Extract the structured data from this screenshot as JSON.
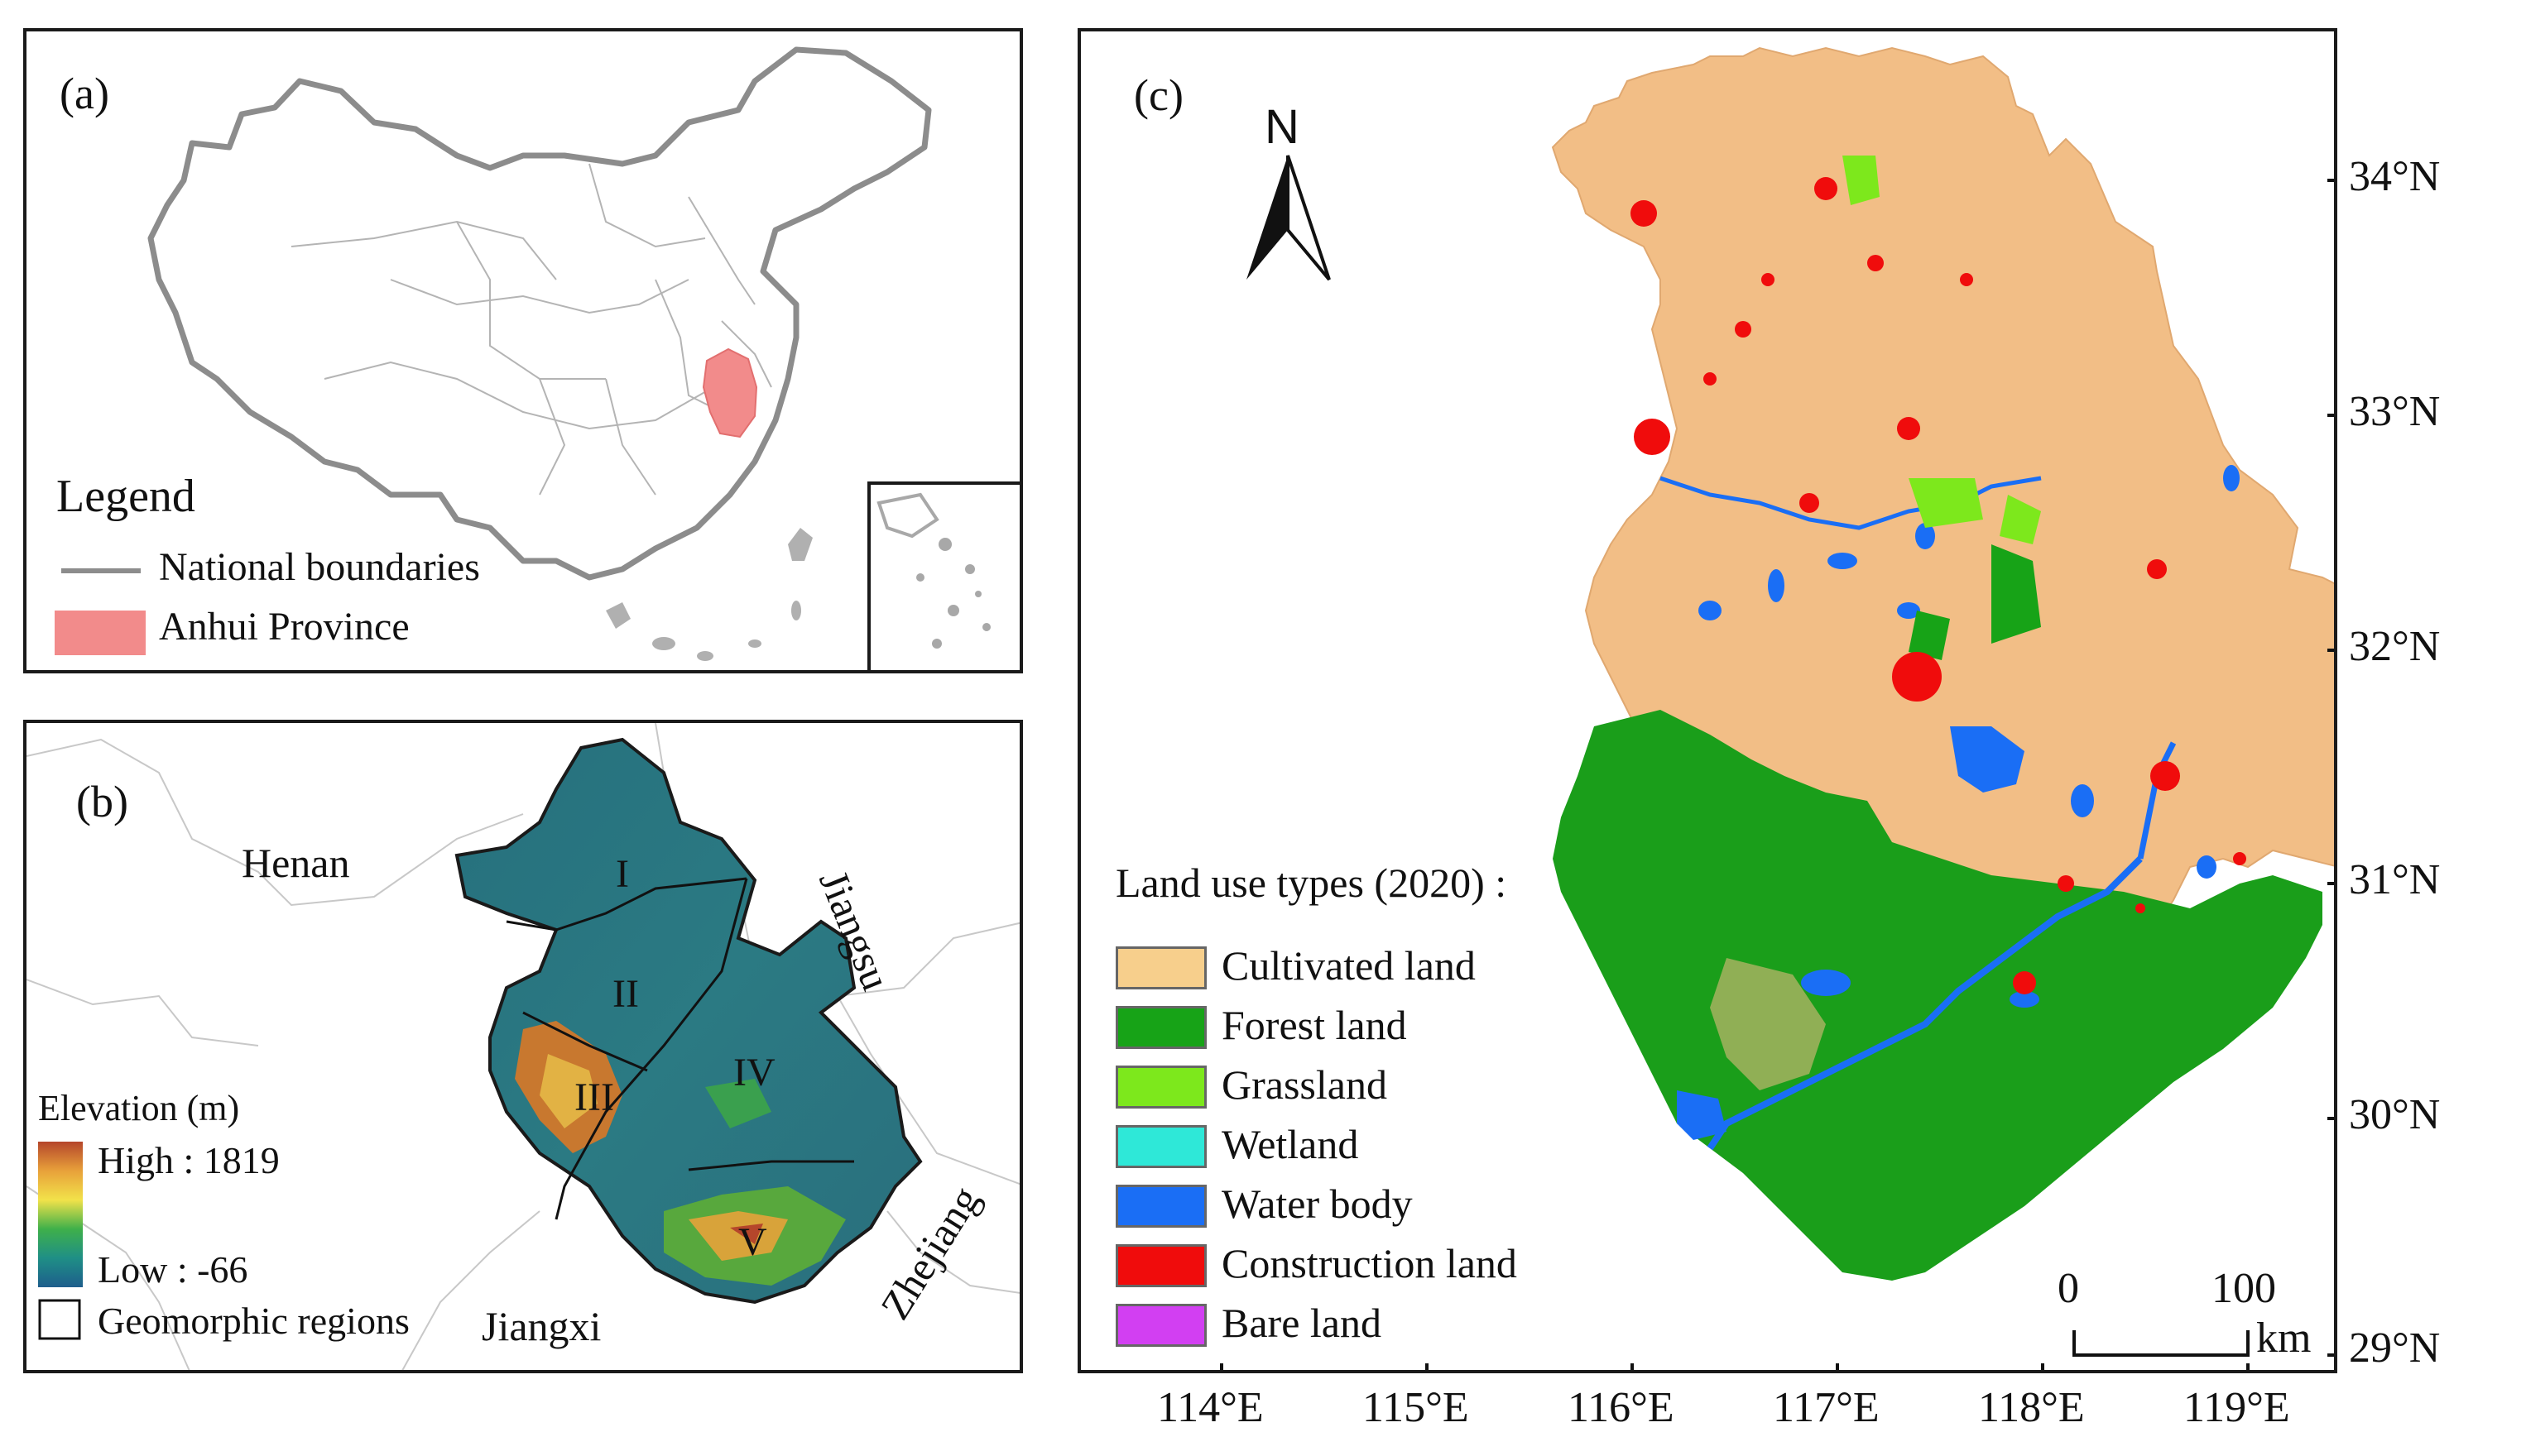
{
  "panel_a": {
    "tag": "(a)",
    "legend_title": "Legend",
    "legend": [
      {
        "label": "National boundaries",
        "kind": "line",
        "color": "#8c8c8c"
      },
      {
        "label": "Anhui Province",
        "kind": "fill",
        "color": "#f28b8b"
      }
    ]
  },
  "panel_b": {
    "tag": "(b)",
    "provinces": [
      "Henan",
      "Jiangsu",
      "Zhejiang",
      "Jiangxi"
    ],
    "regions": [
      "I",
      "II",
      "III",
      "IV",
      "V"
    ],
    "legend_title": "Elevation (m)",
    "high_label": "High : 1819",
    "low_label": "Low : -66",
    "regions_label": "Geomorphic regions",
    "elevation_colors": [
      "#b5462b",
      "#e8a13a",
      "#f2e24a",
      "#3fb04a",
      "#1f8f86",
      "#1e5e8c"
    ]
  },
  "panel_c": {
    "tag": "(c)",
    "north": "N",
    "legend_title": "Land use types (2020) :",
    "classes": [
      {
        "label": "Cultivated land",
        "color": "#f7cf8c"
      },
      {
        "label": "Forest land",
        "color": "#17a317"
      },
      {
        "label": "Grassland",
        "color": "#7de81c"
      },
      {
        "label": "Wetland",
        "color": "#2ee8d8"
      },
      {
        "label": "Water body",
        "color": "#1a6ef5"
      },
      {
        "label": "Construction land",
        "color": "#f00c0c"
      },
      {
        "label": "Bare land",
        "color": "#d23ff2"
      }
    ],
    "scale": {
      "start": "0",
      "end": "100",
      "unit": "km"
    },
    "lat_ticks": [
      "34°N",
      "33°N",
      "32°N",
      "31°N",
      "30°N",
      "29°N"
    ],
    "lon_ticks": [
      "114°E",
      "115°E",
      "116°E",
      "117°E",
      "118°E",
      "119°E"
    ]
  }
}
